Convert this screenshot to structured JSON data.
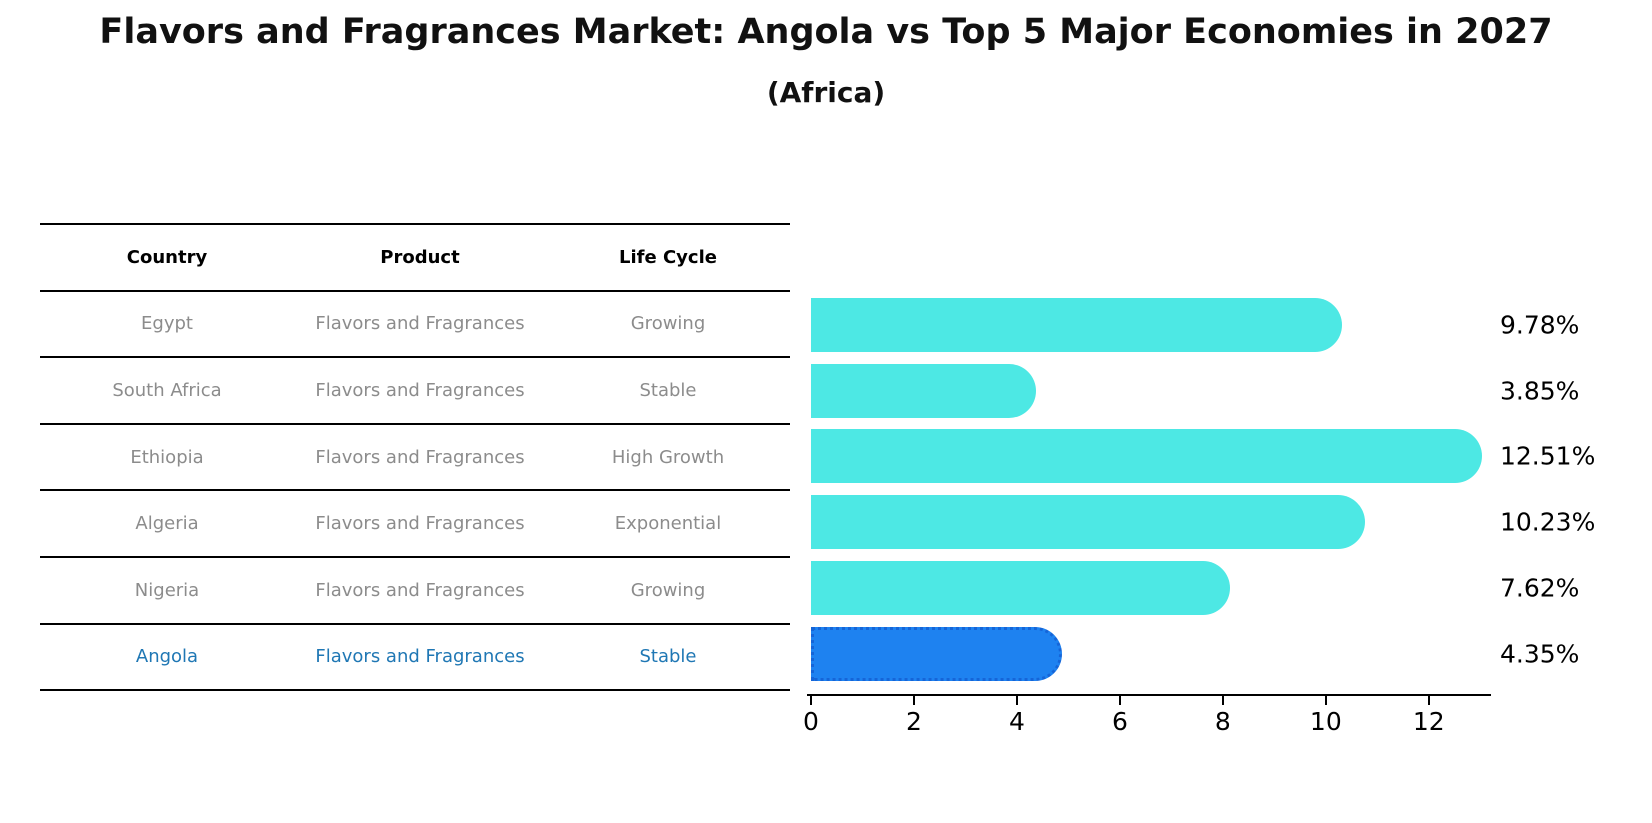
{
  "title": "Flavors and Fragrances Market: Angola vs Top 5 Major Economies in 2027",
  "subtitle": "(Africa)",
  "colors": {
    "bar_default": "#4de8e4",
    "bar_highlight": "#1e82f0",
    "bar_highlight_border": "#1565d8",
    "table_text": "#8c8c8c",
    "highlight_text": "#1f77b4",
    "axis": "#000000"
  },
  "table": {
    "columns": [
      "Country",
      "Product",
      "Life Cycle"
    ],
    "rows": [
      {
        "country": "Egypt",
        "product": "Flavors and Fragrances",
        "life_cycle": "Growing",
        "highlight": false
      },
      {
        "country": "South Africa",
        "product": "Flavors and Fragrances",
        "life_cycle": "Stable",
        "highlight": false
      },
      {
        "country": "Ethiopia",
        "product": "Flavors and Fragrances",
        "life_cycle": "High Growth",
        "highlight": false
      },
      {
        "country": "Algeria",
        "product": "Flavors and Fragrances",
        "life_cycle": "Exponential",
        "highlight": false
      },
      {
        "country": "Nigeria",
        "product": "Flavors and Fragrances",
        "life_cycle": "Growing",
        "highlight": false
      },
      {
        "country": "Angola",
        "product": "Flavors and Fragrances",
        "life_cycle": "Stable",
        "highlight": true
      }
    ]
  },
  "chart_data": {
    "type": "bar",
    "orientation": "horizontal",
    "title": "Flavors and Fragrances Market: Angola vs Top 5 Major Economies in 2027 (Africa)",
    "categories": [
      "Egypt",
      "South Africa",
      "Ethiopia",
      "Algeria",
      "Nigeria",
      "Angola"
    ],
    "values": [
      9.78,
      3.85,
      12.51,
      10.23,
      7.62,
      4.35
    ],
    "value_labels": [
      "9.78%",
      "3.85%",
      "12.51%",
      "10.23%",
      "7.62%",
      "4.35%"
    ],
    "highlight_index": 5,
    "xlabel": "",
    "ylabel": "",
    "xlim": [
      0,
      13.15
    ],
    "xticks": [
      0,
      2,
      4,
      6,
      8,
      10,
      12
    ],
    "grid": false,
    "legend": "none"
  }
}
